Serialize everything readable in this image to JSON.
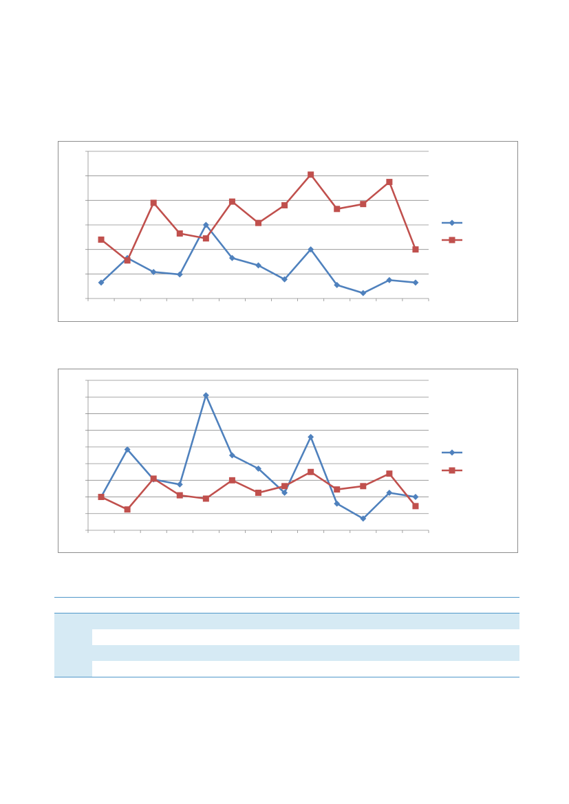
{
  "charts": {
    "chart_data": [
      {
        "type": "line",
        "title": "",
        "xlabel": "",
        "ylabel": "",
        "categories": [
          "",
          "",
          "",
          "",
          "",
          "",
          "",
          "",
          "",
          "",
          "",
          "",
          ""
        ],
        "ylim": [
          0,
          6
        ],
        "grid": true,
        "legend": "right",
        "series": [
          {
            "color": "#4f81bd",
            "marker": "diamond",
            "values": [
              0.65,
              1.65,
              1.08,
              0.98,
              3.0,
              1.65,
              1.35,
              0.78,
              2.0,
              0.55,
              0.22,
              0.75,
              0.65
            ]
          },
          {
            "color": "#c0504d",
            "marker": "square",
            "values": [
              2.4,
              1.55,
              3.9,
              2.65,
              2.45,
              3.95,
              3.08,
              3.8,
              5.05,
              3.65,
              3.85,
              4.75,
              2.0
            ]
          }
        ]
      },
      {
        "type": "line",
        "title": "",
        "xlabel": "",
        "ylabel": "",
        "categories": [
          "",
          "",
          "",
          "",
          "",
          "",
          "",
          "",
          "",
          "",
          "",
          "",
          ""
        ],
        "ylim": [
          0,
          9
        ],
        "grid": true,
        "legend": "right",
        "series": [
          {
            "color": "#4f81bd",
            "marker": "diamond",
            "values": [
              2.0,
              4.85,
              3.05,
              2.75,
              8.1,
              4.5,
              3.7,
              2.25,
              5.6,
              1.6,
              0.7,
              2.25,
              2.0
            ]
          },
          {
            "color": "#c0504d",
            "marker": "square",
            "values": [
              2.0,
              1.25,
              3.1,
              2.1,
              1.9,
              3.0,
              2.25,
              2.65,
              3.5,
              2.45,
              2.65,
              3.4,
              1.45
            ]
          }
        ]
      }
    ]
  },
  "table": {
    "columns": 15,
    "rows": 4
  }
}
